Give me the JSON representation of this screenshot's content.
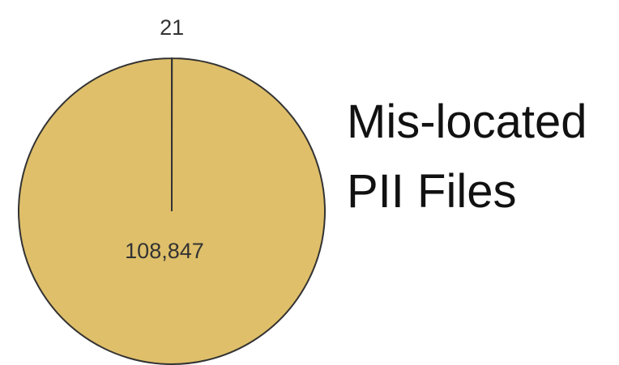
{
  "chart_data": {
    "type": "pie",
    "title": "Mis-located PII Files",
    "categories": [
      null,
      null
    ],
    "values": [
      21,
      108847
    ],
    "value_labels": [
      "21",
      "108,847"
    ],
    "colors": [
      "#dfbf6a",
      "#dfbf6a"
    ]
  }
}
